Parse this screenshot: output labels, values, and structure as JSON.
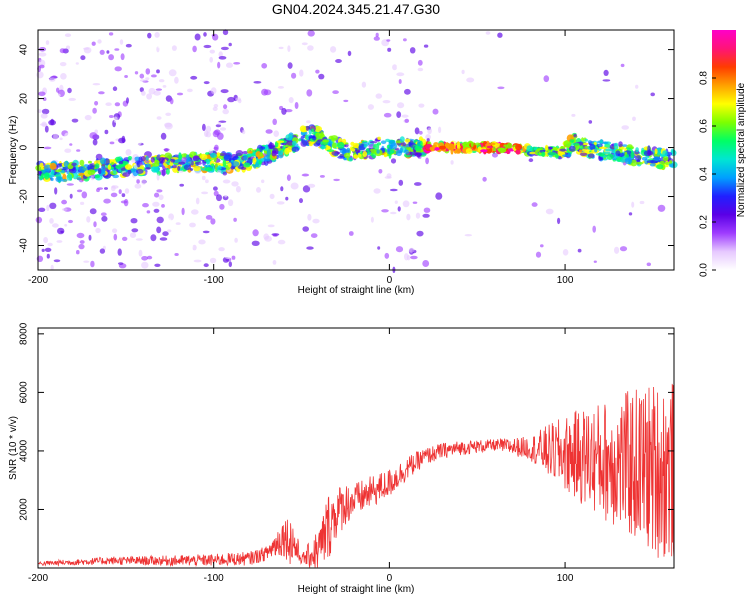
{
  "title": "GN04.2024.345.21.47.G30",
  "chart_data": [
    {
      "type": "heatmap",
      "xlabel": "Height of straight line (km)",
      "ylabel": "Frequency (Hz)",
      "xlim": [
        -200,
        162
      ],
      "ylim": [
        -50,
        48
      ],
      "xticks": [
        -200,
        -100,
        0,
        100
      ],
      "yticks": [
        -40,
        -20,
        0,
        20,
        40
      ],
      "colorbar": {
        "label": "Normalized spectral amplitude",
        "range": [
          0,
          1
        ],
        "ticks": [
          "0.0",
          "0.2",
          "0.4",
          "0.6",
          "0.8"
        ],
        "colors": [
          "#ffffff",
          "#e6c8ff",
          "#9e3cff",
          "#5a00e6",
          "#2020ff",
          "#00a0ff",
          "#00e6d2",
          "#00ff64",
          "#7dff00",
          "#ffff00",
          "#ffa000",
          "#ff3c00",
          "#ff1478",
          "#ff00c8"
        ]
      },
      "ridge": {
        "x": [
          -200,
          -185,
          -170,
          -150,
          -130,
          -110,
          -100,
          -90,
          -80,
          -70,
          -60,
          -50,
          -45,
          -40,
          -35,
          -30,
          -25,
          -20,
          -15,
          -10,
          -5,
          0,
          5,
          10,
          15,
          20,
          25,
          40,
          60,
          80,
          100,
          105,
          110,
          120,
          130,
          140,
          150,
          162
        ],
        "y": [
          -10,
          -10,
          -9,
          -8,
          -7,
          -6,
          -6,
          -6,
          -5,
          -3,
          0,
          4,
          5,
          4,
          2,
          0,
          -1,
          -2,
          -1,
          0,
          1,
          0,
          0,
          0,
          0,
          0,
          0,
          0,
          0,
          -1,
          -2,
          3,
          0,
          -1,
          -2,
          -3,
          -4,
          -5
        ]
      }
    },
    {
      "type": "line",
      "xlabel": "Height of straight line (km)",
      "ylabel": "SNR (10 * v/v)",
      "xlim": [
        -200,
        162
      ],
      "ylim": [
        0,
        8200
      ],
      "xticks": [
        -200,
        -100,
        0,
        100
      ],
      "yticks": [
        2000,
        4000,
        6000,
        8000
      ],
      "color": "#ee3333",
      "envelope": {
        "x": [
          -200,
          -180,
          -160,
          -140,
          -120,
          -100,
          -90,
          -80,
          -70,
          -65,
          -60,
          -55,
          -50,
          -40,
          -35,
          -30,
          -25,
          -20,
          -10,
          0,
          10,
          20,
          30,
          40,
          60,
          70,
          80,
          90,
          100,
          110,
          120,
          130,
          140,
          150,
          162
        ],
        "y": [
          150,
          200,
          250,
          250,
          250,
          270,
          300,
          320,
          500,
          800,
          1100,
          900,
          300,
          600,
          1400,
          1900,
          2200,
          2300,
          2600,
          2900,
          3400,
          3800,
          4000,
          4100,
          4200,
          4150,
          4100,
          4000,
          3900,
          3800,
          3700,
          3600,
          3500,
          3400,
          3300
        ]
      },
      "spread": {
        "x": [
          -200,
          -70,
          -60,
          -55,
          -50,
          -35,
          -30,
          -20,
          0,
          20,
          60,
          80,
          90,
          100,
          110,
          120,
          130,
          140,
          150,
          162
        ],
        "y": [
          80,
          250,
          700,
          900,
          150,
          1200,
          900,
          600,
          500,
          300,
          200,
          400,
          900,
          1300,
          1700,
          2000,
          2300,
          2700,
          3000,
          3200
        ]
      }
    }
  ]
}
